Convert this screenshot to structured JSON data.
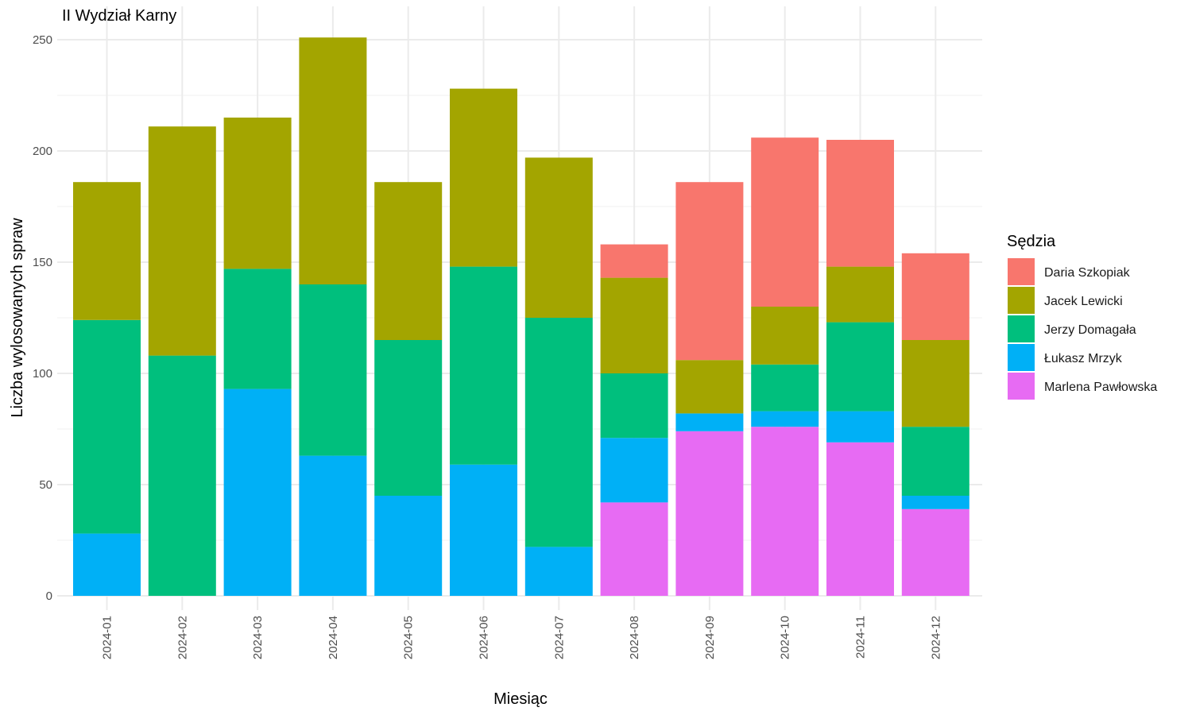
{
  "chart_data": {
    "type": "bar",
    "stacked": true,
    "title": "II Wydział Karny",
    "xlabel": "Miesiąc",
    "ylabel": "Liczba wylosowanych spraw",
    "ylim": [
      0,
      250
    ],
    "yticks": [
      0,
      50,
      100,
      150,
      200,
      250
    ],
    "grid": true,
    "legend_title": "Sędzia",
    "legend_position": "right",
    "categories": [
      "2024-01",
      "2024-02",
      "2024-03",
      "2024-04",
      "2024-05",
      "2024-06",
      "2024-07",
      "2024-08",
      "2024-09",
      "2024-10",
      "2024-11",
      "2024-12"
    ],
    "series": [
      {
        "name": "Daria Szkopiak",
        "color": "#F8766D",
        "values": [
          0,
          0,
          0,
          0,
          0,
          0,
          0,
          15,
          80,
          76,
          57,
          39
        ]
      },
      {
        "name": "Jacek Lewicki",
        "color": "#A3A500",
        "values": [
          62,
          103,
          68,
          111,
          71,
          80,
          72,
          43,
          24,
          26,
          25,
          39
        ]
      },
      {
        "name": "Jerzy Domagała",
        "color": "#00BF7D",
        "values": [
          96,
          108,
          54,
          77,
          70,
          89,
          103,
          29,
          0,
          21,
          40,
          31
        ]
      },
      {
        "name": "Łukasz Mrzyk",
        "color": "#00B0F6",
        "values": [
          28,
          0,
          93,
          63,
          45,
          59,
          22,
          29,
          8,
          7,
          14,
          6
        ]
      },
      {
        "name": "Marlena Pawłowska",
        "color": "#E76BF3",
        "values": [
          0,
          0,
          0,
          0,
          0,
          0,
          0,
          42,
          74,
          76,
          69,
          39
        ]
      }
    ]
  }
}
